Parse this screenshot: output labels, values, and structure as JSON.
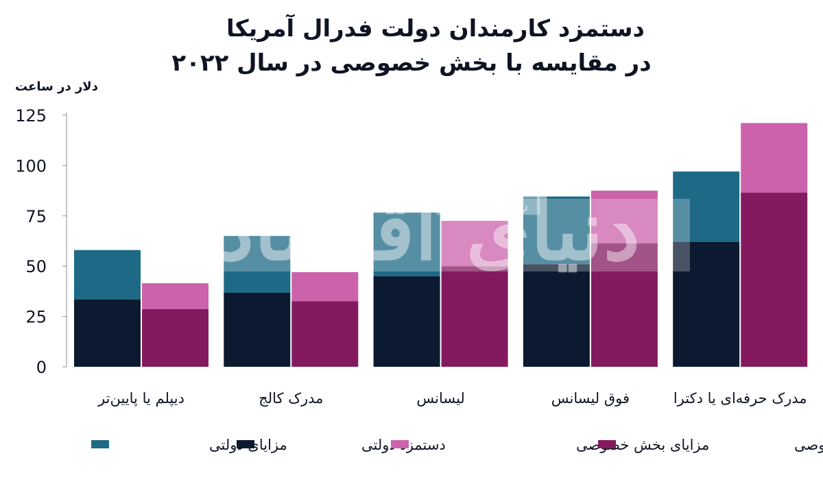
{
  "chart_data": {
    "type": "bar",
    "title_line1": "دستمزد کارمندان دولت فدرال آمریکا",
    "title_line2": "در مقایسه با بخش خصوصی در سال ۲۰۲۲",
    "unit_label": "دلار در ساعت",
    "categories": [
      "دیپلم یا پایین‌تر",
      "مدرک کالج",
      "لیسانس",
      "فوق لیسانس",
      "مدرک حرفه‌ای یا دکترا"
    ],
    "yticks": [
      0,
      25,
      50,
      75,
      100,
      125
    ],
    "ylim": [
      0,
      125
    ],
    "grid": false,
    "stacks": [
      {
        "group": "government",
        "series": [
          {
            "name": "دستمزد دولتی",
            "color": "#0b1a30",
            "values": [
              33.5,
              36.8,
              45,
              51,
              62
            ]
          },
          {
            "name": "مزایای دولتی",
            "color": "#1e6a86",
            "values": [
              24.5,
              28.2,
              31.6,
              33.6,
              35
            ]
          }
        ]
      },
      {
        "group": "private",
        "series": [
          {
            "name": "دستمزد بخش خصوصی",
            "color": "#831a5f",
            "values": [
              28.7,
              32.6,
              50,
              61.3,
              86.5
            ]
          },
          {
            "name": "مزایای بخش خصوصی",
            "color": "#cb62ab",
            "values": [
              12.8,
              14.4,
              22.5,
              26.2,
              34.6
            ]
          }
        ]
      }
    ],
    "legend": {
      "placement": "bottom",
      "items": [
        {
          "label": "مزایای دولتی",
          "color": "#1e6a86"
        },
        {
          "label": "دستمزد دولتی",
          "color": "#0b1a30"
        },
        {
          "label": "مزایای بخش خصوصی",
          "color": "#cb62ab"
        },
        {
          "label": "دستمزد بخش خصوصی",
          "color": "#831a5f"
        }
      ]
    },
    "watermark": {
      "logo_text": "دنیای اقتصاد",
      "tag_text": "روزنامه صبح ایران"
    }
  }
}
